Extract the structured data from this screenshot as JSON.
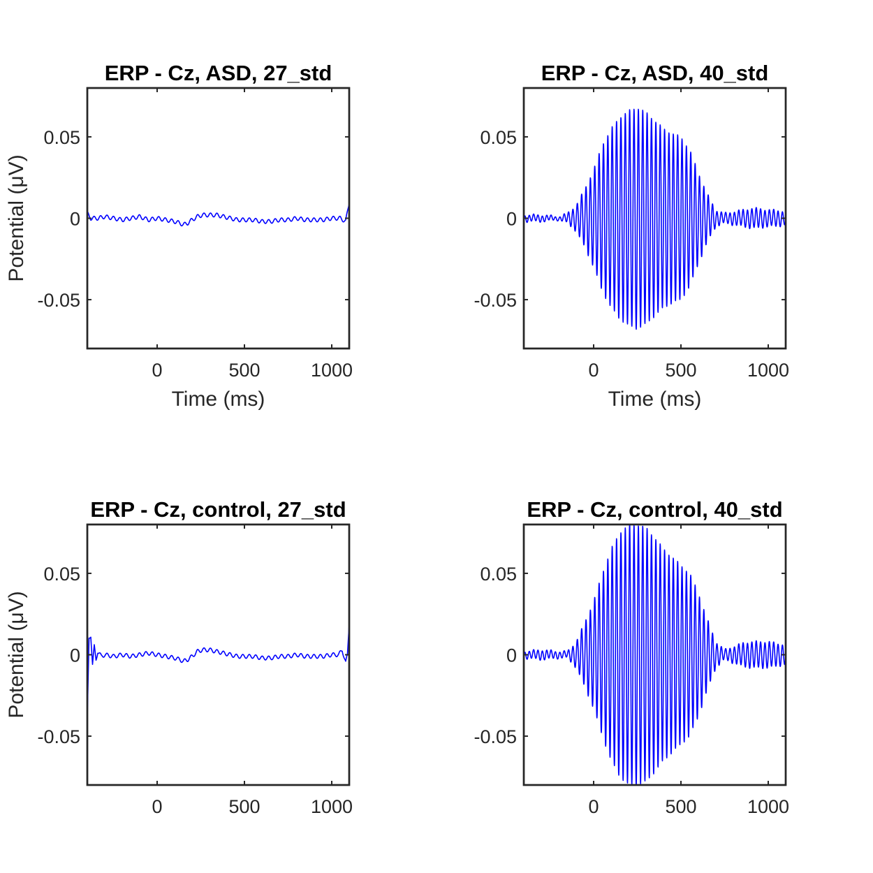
{
  "chart_data": [
    {
      "type": "line",
      "title": "ERP - Cz, ASD, 27_std",
      "xlabel": "Time (ms)",
      "ylabel": "Potential (μV)",
      "xlim": [
        -400,
        1100
      ],
      "ylim": [
        -0.08,
        0.08
      ],
      "xticks": [
        0,
        500,
        1000
      ],
      "xtick_labels": [
        "0",
        "500",
        "1000"
      ],
      "yticks": [
        -0.05,
        0,
        0.05
      ],
      "ytick_labels": [
        "-0.05",
        "0",
        "0.05"
      ],
      "color": "#0000ff",
      "series": [
        {
          "x": [
            -400,
            -380,
            -340,
            -300,
            -250,
            -200,
            -150,
            -100,
            -50,
            0,
            50,
            100,
            130,
            150,
            175,
            200,
            230,
            260,
            300,
            340,
            380,
            420,
            460,
            500,
            550,
            600,
            650,
            700,
            750,
            800,
            850,
            900,
            950,
            1000,
            1050,
            1080,
            1100
          ],
          "y": [
            0.003,
            0.0,
            0.0,
            0.001,
            0.0,
            -0.001,
            0.0,
            0.001,
            -0.001,
            0.0,
            -0.001,
            -0.002,
            -0.003,
            -0.004,
            -0.003,
            -0.001,
            0.001,
            0.002,
            0.002,
            0.002,
            0.001,
            0.0,
            -0.001,
            -0.001,
            -0.001,
            -0.002,
            -0.002,
            -0.001,
            -0.001,
            0.0,
            -0.001,
            -0.001,
            -0.001,
            0.0,
            0.0,
            -0.002,
            0.01
          ]
        }
      ]
    },
    {
      "type": "line",
      "title": "ERP - Cz, ASD, 40_std",
      "xlabel": "Time (ms)",
      "ylabel": "",
      "xlim": [
        -400,
        1100
      ],
      "ylim": [
        -0.08,
        0.08
      ],
      "xticks": [
        0,
        500,
        1000
      ],
      "xtick_labels": [
        "0",
        "500",
        "1000"
      ],
      "yticks": [
        -0.05,
        0,
        0.05
      ],
      "ytick_labels": [
        "-0.05",
        "0",
        "0.05"
      ],
      "color": "#0000ff",
      "series": [
        {
          "x": [
            -400,
            -300,
            -200,
            -150,
            -100,
            -50,
            0,
            50,
            100,
            150,
            200,
            250,
            300,
            350,
            400,
            450,
            500,
            550,
            600,
            650,
            700,
            750,
            800,
            850,
            900,
            950,
            1000,
            1050,
            1100
          ],
          "y": [
            0.002,
            0.002,
            0.001,
            0.003,
            0.008,
            0.018,
            0.03,
            0.045,
            0.055,
            0.062,
            0.066,
            0.068,
            0.065,
            0.06,
            0.055,
            0.052,
            0.05,
            0.042,
            0.028,
            0.015,
            0.005,
            0.003,
            0.004,
            0.005,
            0.006,
            0.006,
            0.005,
            0.005,
            0.004
          ]
        }
      ]
    },
    {
      "type": "line",
      "title": "ERP - Cz, control, 27_std",
      "xlabel": "",
      "ylabel": "Potential (μV)",
      "xlim": [
        -400,
        1100
      ],
      "ylim": [
        -0.08,
        0.08
      ],
      "xticks": [
        0,
        500,
        1000
      ],
      "xtick_labels": [
        "0",
        "500",
        "1000"
      ],
      "yticks": [
        -0.05,
        0,
        0.05
      ],
      "ytick_labels": [
        "-0.05",
        "0",
        "0.05"
      ],
      "color": "#0000ff",
      "series": [
        {
          "x": [
            -400,
            -390,
            -380,
            -370,
            -360,
            -350,
            -340,
            -320,
            -300,
            -250,
            -200,
            -150,
            -100,
            -50,
            0,
            50,
            100,
            130,
            150,
            175,
            200,
            230,
            260,
            300,
            340,
            380,
            420,
            460,
            500,
            550,
            600,
            650,
            700,
            750,
            800,
            850,
            900,
            950,
            1000,
            1040,
            1060,
            1080,
            1090,
            1100
          ],
          "y": [
            -0.04,
            0.01,
            0.012,
            -0.006,
            0.005,
            -0.003,
            0.002,
            -0.001,
            0.0,
            -0.001,
            0.0,
            -0.001,
            0.0,
            0.001,
            0.0,
            -0.001,
            -0.002,
            -0.003,
            -0.004,
            -0.003,
            -0.001,
            0.002,
            0.003,
            0.003,
            0.002,
            0.001,
            0.0,
            -0.001,
            -0.001,
            -0.001,
            -0.002,
            -0.002,
            -0.001,
            -0.001,
            0.0,
            -0.001,
            -0.001,
            -0.001,
            0.0,
            0.0,
            0.003,
            -0.005,
            0.0,
            0.02
          ]
        }
      ]
    },
    {
      "type": "line",
      "title": "ERP - Cz, control, 40_std",
      "xlabel": "",
      "ylabel": "",
      "xlim": [
        -400,
        1100
      ],
      "ylim": [
        -0.08,
        0.08
      ],
      "xticks": [
        0,
        500,
        1000
      ],
      "xtick_labels": [
        "0",
        "500",
        "1000"
      ],
      "yticks": [
        -0.05,
        0,
        0.05
      ],
      "ytick_labels": [
        "-0.05",
        "0",
        "0.05"
      ],
      "color": "#0000ff",
      "series": [
        {
          "x": [
            -400,
            -300,
            -200,
            -150,
            -100,
            -50,
            0,
            50,
            100,
            150,
            200,
            250,
            300,
            350,
            400,
            450,
            500,
            550,
            600,
            650,
            700,
            750,
            800,
            850,
            900,
            950,
            1000,
            1050,
            1100
          ],
          "y": [
            0.002,
            0.003,
            0.002,
            0.002,
            0.008,
            0.02,
            0.033,
            0.05,
            0.065,
            0.075,
            0.08,
            0.08,
            0.078,
            0.072,
            0.065,
            0.06,
            0.055,
            0.05,
            0.038,
            0.022,
            0.008,
            0.003,
            0.005,
            0.007,
            0.008,
            0.008,
            0.008,
            0.007,
            0.006
          ]
        }
      ]
    }
  ]
}
